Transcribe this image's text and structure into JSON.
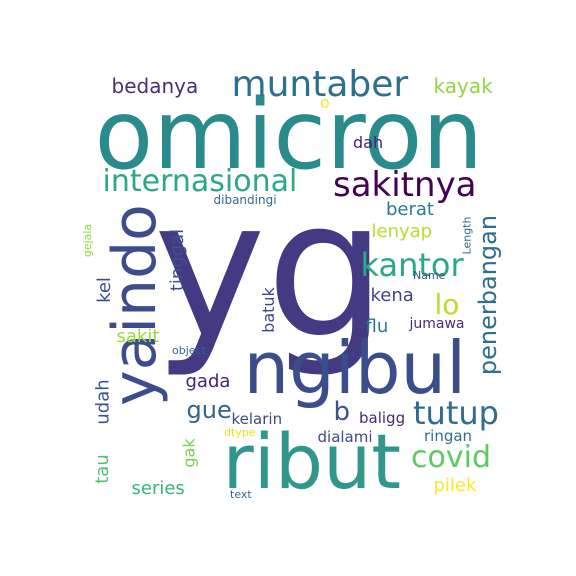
{
  "title": "",
  "words": [
    {
      "key": "yg",
      "text": "yg",
      "color": "#443983"
    },
    {
      "key": "omicron",
      "text": "omicron",
      "color": "#2a8b8c"
    },
    {
      "key": "ngibul",
      "text": "ngibul",
      "color": "#3b4d8a"
    },
    {
      "key": "ribut",
      "text": "ribut",
      "color": "#31978c"
    },
    {
      "key": "yaindo",
      "text": "yaindo",
      "color": "#3d4c8a"
    },
    {
      "key": "muntaber",
      "text": "muntaber",
      "color": "#2f6f8e"
    },
    {
      "key": "sakitnya",
      "text": "sakitnya",
      "color": "#440154"
    },
    {
      "key": "internasional",
      "text": "internasional",
      "color": "#2ba985"
    },
    {
      "key": "kantor",
      "text": "kantor",
      "color": "#28ab82"
    },
    {
      "key": "penerbangan",
      "text": "penerbangan",
      "color": "#2e6e8e"
    },
    {
      "key": "tutup",
      "text": "tutup",
      "color": "#2f6c8e"
    },
    {
      "key": "covid",
      "text": "covid",
      "color": "#5ec962"
    },
    {
      "key": "gue",
      "text": "gue",
      "color": "#32648e"
    },
    {
      "key": "lo",
      "text": "lo",
      "color": "#b6de2b"
    },
    {
      "key": "bedanya",
      "text": "bedanya",
      "color": "#472f7d"
    },
    {
      "key": "kayak",
      "text": "kayak",
      "color": "#8fd744"
    },
    {
      "key": "berat",
      "text": "berat",
      "color": "#287c8e"
    },
    {
      "key": "lenyap",
      "text": "lenyap",
      "color": "#b8de29"
    },
    {
      "key": "kena",
      "text": "kena",
      "color": "#414487"
    },
    {
      "key": "flu",
      "text": "flu",
      "color": "#2a788e"
    },
    {
      "key": "tinggal",
      "text": "tinggal",
      "color": "#3b528b"
    },
    {
      "key": "batuk",
      "text": "batuk",
      "color": "#3f4889"
    },
    {
      "key": "sakit",
      "text": "sakit",
      "color": "#a0da39"
    },
    {
      "key": "kel",
      "text": "kel",
      "color": "#3e4c8a"
    },
    {
      "key": "gada",
      "text": "gada",
      "color": "#482173"
    },
    {
      "key": "udah",
      "text": "udah",
      "color": "#3b528b"
    },
    {
      "key": "tau",
      "text": "tau",
      "color": "#50c46a"
    },
    {
      "key": "gak",
      "text": "gak",
      "color": "#7ad151"
    },
    {
      "key": "series",
      "text": "series",
      "color": "#35b779"
    },
    {
      "key": "pilek",
      "text": "pilek",
      "color": "#fde725"
    },
    {
      "key": "ringan",
      "text": "ringan",
      "color": "#2d708e"
    },
    {
      "key": "dialami",
      "text": "dialami",
      "color": "#3e4a89"
    },
    {
      "key": "kelarin",
      "text": "kelarin",
      "color": "#3e4989"
    },
    {
      "key": "baliggg",
      "text": "baligg",
      "color": "#482878"
    },
    {
      "key": "b",
      "text": "b",
      "color": "#3b528b"
    },
    {
      "key": "jumawa",
      "text": "jumawa",
      "color": "#472d7b"
    },
    {
      "key": "dah",
      "text": "dah",
      "color": "#482173"
    },
    {
      "key": "o",
      "text": "o",
      "color": "#fde725"
    },
    {
      "key": "dibandingi",
      "text": "dibandingi",
      "color": "#31688e"
    },
    {
      "key": "gejala",
      "text": "gejala",
      "color": "#8fd744"
    },
    {
      "key": "Length",
      "text": "Length",
      "color": "#31688e"
    },
    {
      "key": "Name",
      "text": "Name",
      "color": "#3b528b"
    },
    {
      "key": "object",
      "text": "object",
      "color": "#33638d"
    },
    {
      "key": "dtype",
      "text": "dtype",
      "color": "#e5e419"
    },
    {
      "key": "text",
      "text": "text",
      "color": "#31688e"
    }
  ]
}
